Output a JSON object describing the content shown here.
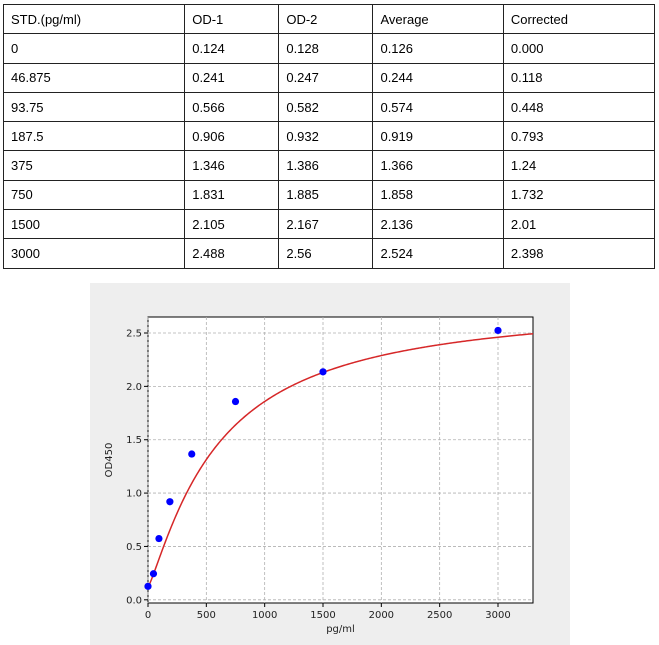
{
  "table": {
    "headers": [
      "STD.(pg/ml)",
      "OD-1",
      "OD-2",
      "Average",
      "Corrected"
    ],
    "rows": [
      [
        "0",
        "0.124",
        "0.128",
        "0.126",
        "0.000"
      ],
      [
        "46.875",
        "0.241",
        "0.247",
        "0.244",
        "0.118"
      ],
      [
        "93.75",
        "0.566",
        "0.582",
        "0.574",
        "0.448"
      ],
      [
        "187.5",
        "0.906",
        "0.932",
        "0.919",
        "0.793"
      ],
      [
        "375",
        "1.346",
        "1.386",
        "1.366",
        "1.24"
      ],
      [
        "750",
        "1.831",
        "1.885",
        "1.858",
        "1.732"
      ],
      [
        "1500",
        "2.105",
        "2.167",
        "2.136",
        "2.01"
      ],
      [
        "3000",
        "2.488",
        "2.56",
        "2.524",
        "2.398"
      ]
    ]
  },
  "chart_data": {
    "type": "scatter",
    "xlabel": "pg/ml",
    "ylabel": "OD450",
    "xlim": [
      0,
      3300
    ],
    "ylim": [
      -0.03,
      2.65
    ],
    "xticks": [
      0,
      500,
      1000,
      1500,
      2000,
      2500,
      3000
    ],
    "yticks": [
      0.0,
      0.5,
      1.0,
      1.5,
      2.0,
      2.5
    ],
    "grid": true,
    "series": [
      {
        "kind": "points",
        "color": "#0000ff",
        "x": [
          0,
          46.875,
          93.75,
          187.5,
          375,
          750,
          1500,
          3000
        ],
        "y": [
          0.126,
          0.244,
          0.574,
          0.919,
          1.366,
          1.858,
          2.136,
          2.524
        ]
      },
      {
        "kind": "fit-curve",
        "color": "#d62728"
      }
    ],
    "fit": {
      "model": "4PL",
      "A": 0.12,
      "B": 1.2,
      "C": 600,
      "D": 2.8
    }
  }
}
